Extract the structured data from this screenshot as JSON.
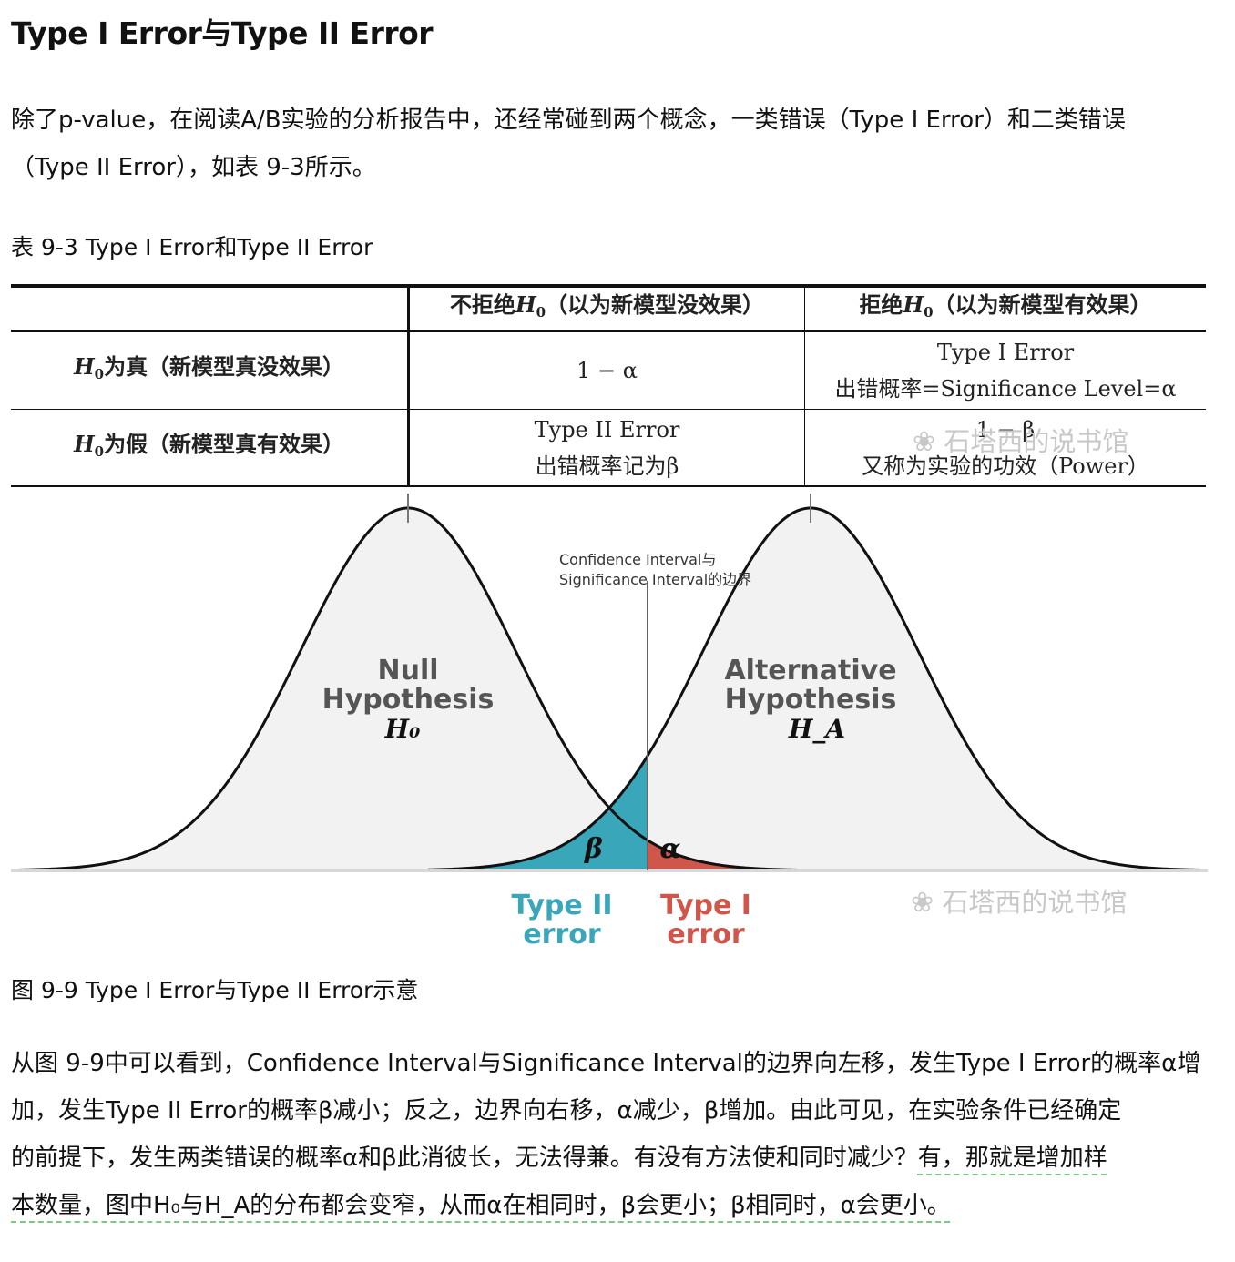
{
  "title": "Type I Error与Type II Error",
  "intro": {
    "line1": "除了p-value，在阅读A/B实验的分析报告中，还经常碰到两个概念，一类错误（Type I Error）和二类错误",
    "line2": "（Type II Error），如表 9-3所示。"
  },
  "table_caption": "表 9-3 Type I Error和Type II Error",
  "table": {
    "col1_head_text": "不拒绝",
    "col1_head_suffix": "（以为新模型没效果）",
    "col2_head_text": "拒绝",
    "col2_head_suffix": "（以为新模型有效果）",
    "h_symbol": "H",
    "h_sub": "0",
    "row1_label_suffix": "为真（新模型真没效果）",
    "row2_label_suffix": "为假（新模型真有效果）",
    "r1c1": "1 − α",
    "r1c2_line1": "Type I Error",
    "r1c2_line2": "出错概率=Significance Level=α",
    "r2c1_line1": "Type II Error",
    "r2c1_line2": "出错概率记为β",
    "r2c2_line1": "1 − β",
    "r2c2_line2": "又称为实验的功效（Power）"
  },
  "watermark": "石塔西的说书馆",
  "figure": {
    "boundary_label_line1": "Confidence Interval与",
    "boundary_label_line2": "Significance Interval的边界",
    "null_label_line1": "Null",
    "null_label_line2": "Hypothesis",
    "null_symbol": "H₀",
    "alt_label_line1": "Alternative",
    "alt_label_line2": "Hypothesis",
    "alt_symbol": "H_A",
    "beta_symbol": "β",
    "alpha_symbol": "α",
    "type2_line1": "Type II",
    "type2_line2": "error",
    "type1_line1": "Type I",
    "type1_line2": "error",
    "colors": {
      "type2": "#3aa6b9",
      "type1": "#d0564b",
      "curve_fill": "#f2f2f2",
      "curve_stroke": "#111111",
      "label_gray": "#555555"
    }
  },
  "figure_caption": "图 9-9 Type I Error与Type II Error示意",
  "conclusion": {
    "line1": "从图 9-9中可以看到，Confidence Interval与Significance Interval的边界向左移，发生Type I Error的概率α增",
    "line2": "加，发生Type II Error的概率β减小；反之，边界向右移，α减少，β增加。由此可见，在实验条件已经确定",
    "line3a": "的前提下，发生两类错误的概率α和β此消彼长，无法得兼。有没有方法使和同时减少？",
    "line3b": "有，那就是增加样",
    "line4": "本数量，图中H₀与H_A的分布都会变窄，从而α在相同时，β会更小；β相同时，α会更小。"
  }
}
